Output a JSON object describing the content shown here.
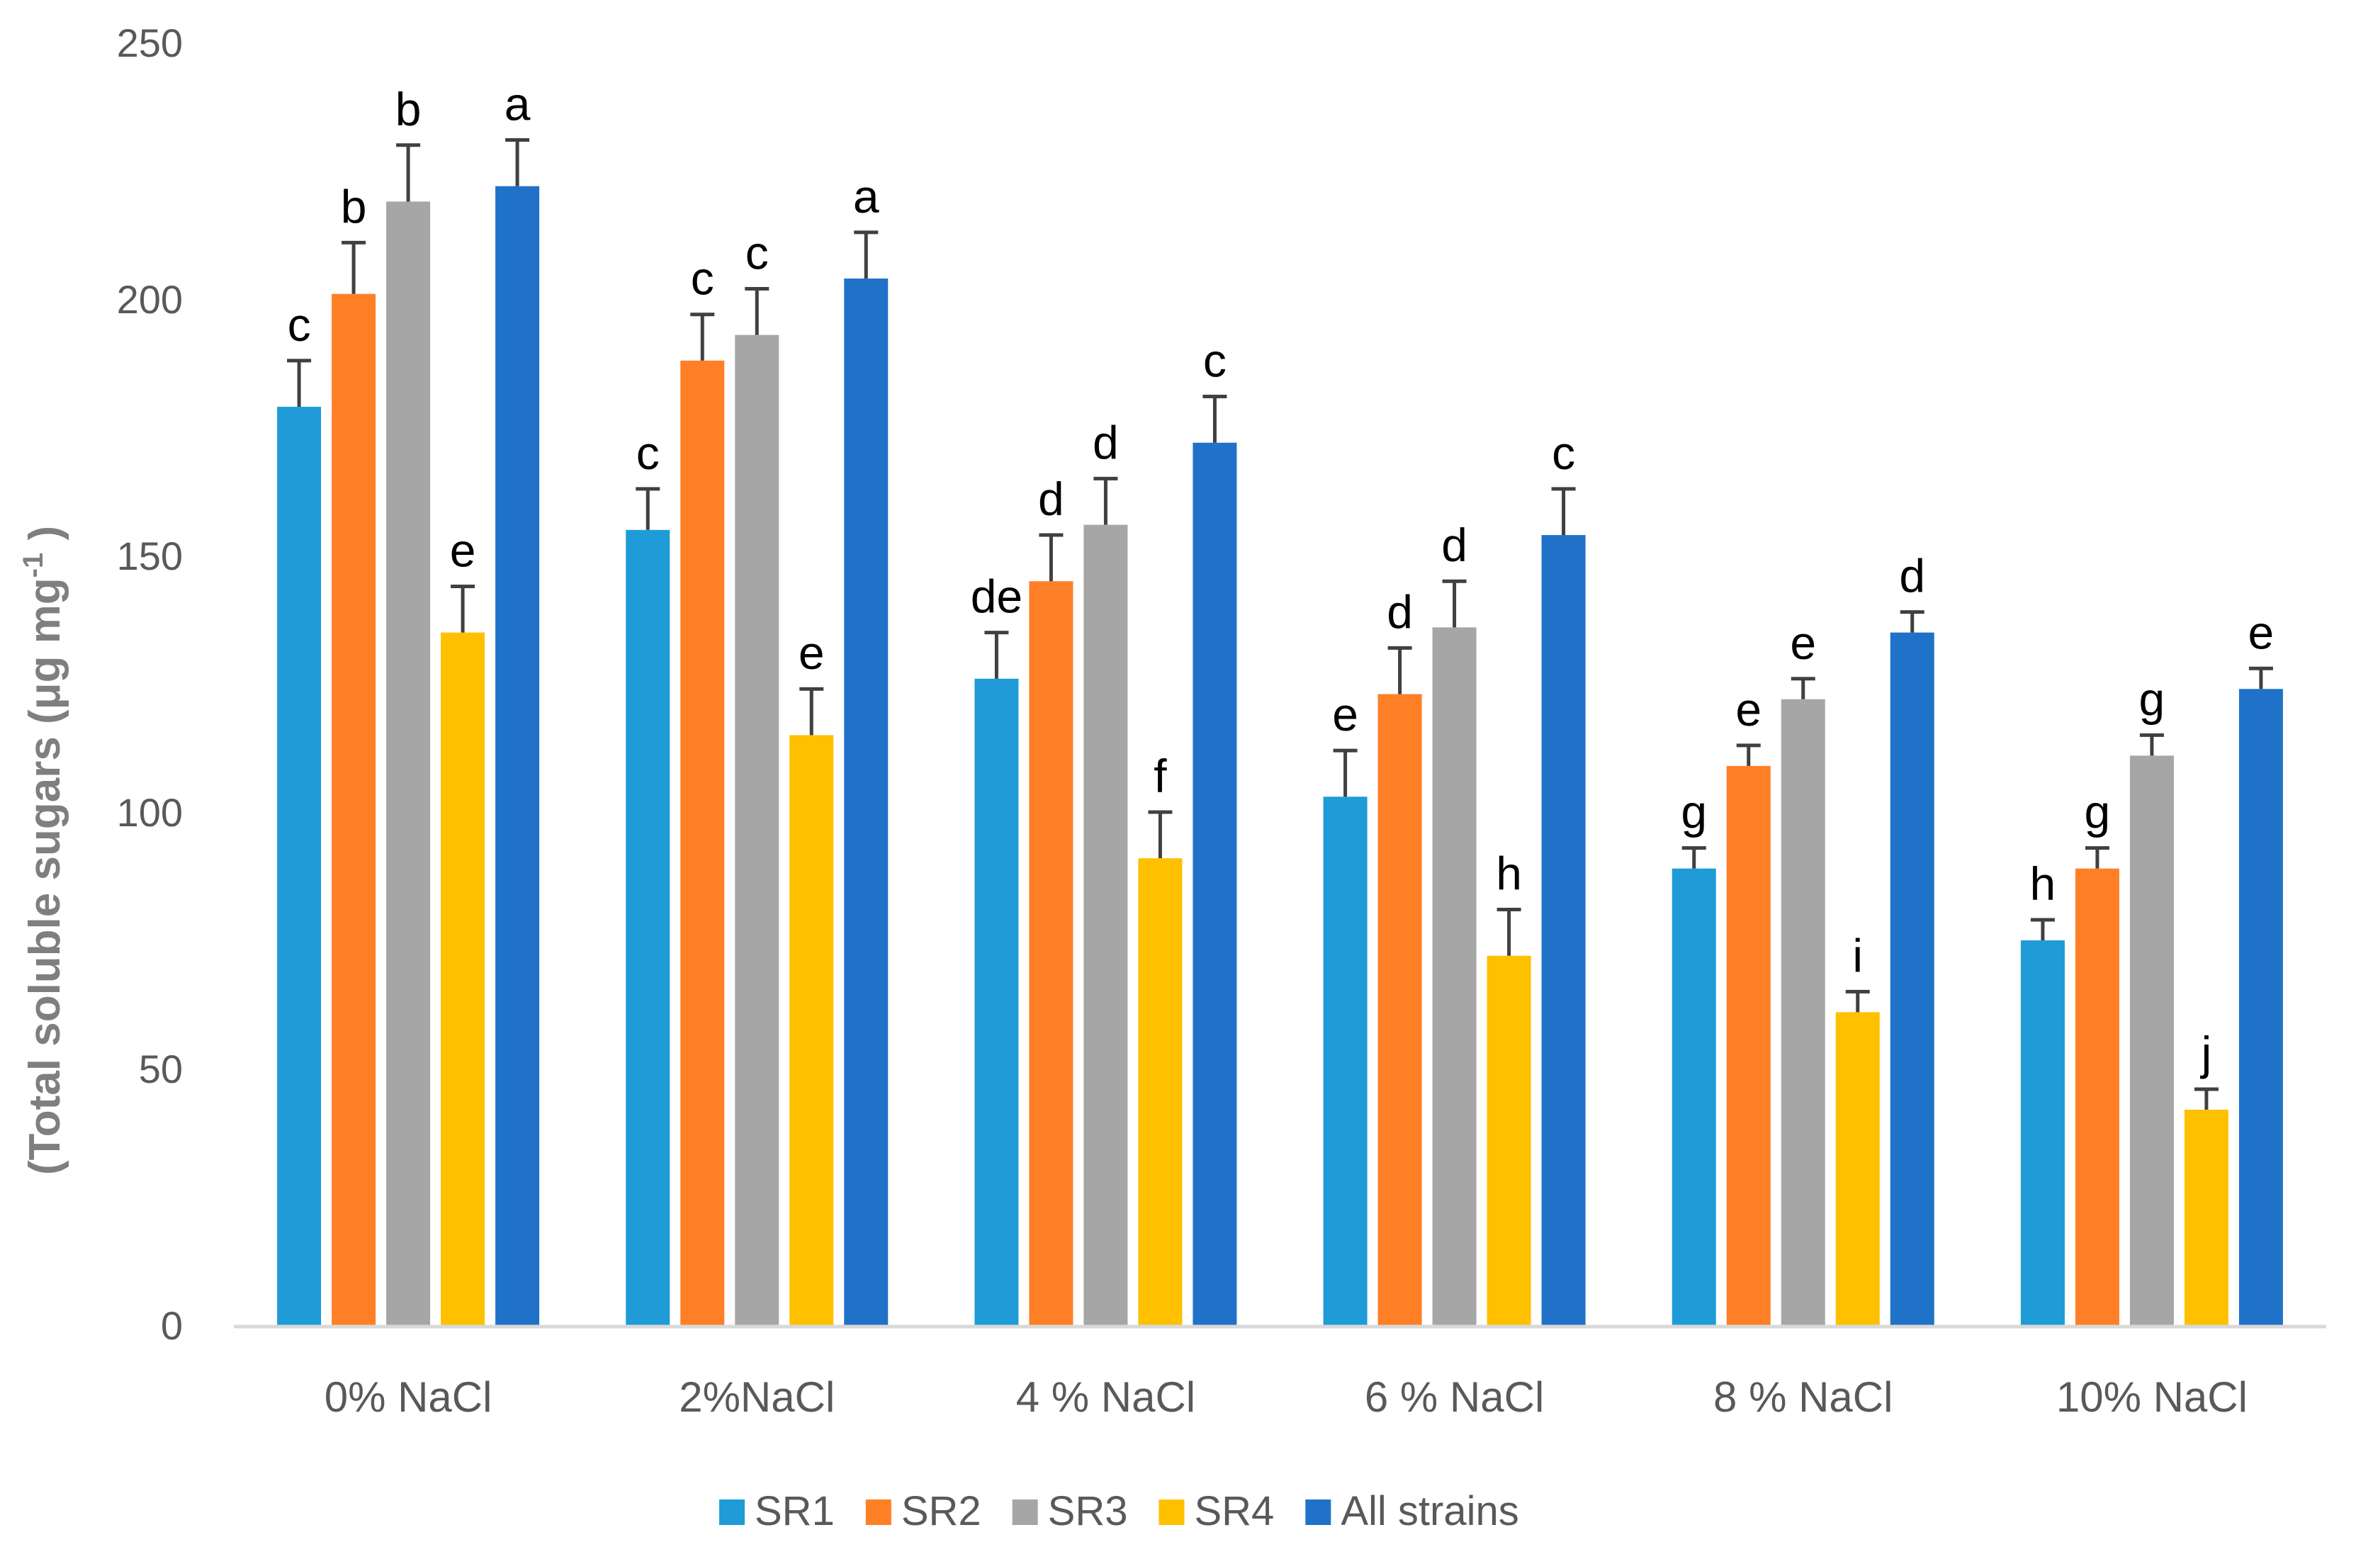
{
  "chart_data": {
    "type": "bar",
    "title": "",
    "xlabel": "",
    "ylabel_main": "(Total soluble sugars (μg mg",
    "ylabel_sup": "-1",
    "ylabel_end": " )",
    "ylim": [
      0,
      250
    ],
    "yticks": [
      0,
      50,
      100,
      150,
      200,
      250
    ],
    "grid": false,
    "legend_position": "bottom",
    "categories": [
      "0% NaCl",
      "2%NaCl",
      "4 % NaCl",
      "6 % NaCl",
      "8 % NaCl",
      "10% NaCl"
    ],
    "series": [
      {
        "name": "SR1",
        "color": "#1F9BD7",
        "values": [
          179,
          155,
          126,
          103,
          89,
          75
        ],
        "errors": [
          9,
          8,
          9,
          9,
          4,
          4
        ],
        "letters": [
          "c",
          "c",
          "de",
          "e",
          "g",
          "h"
        ]
      },
      {
        "name": "SR2",
        "color": "#FF7F27",
        "values": [
          201,
          188,
          145,
          123,
          109,
          89
        ],
        "errors": [
          10,
          9,
          9,
          9,
          4,
          4
        ],
        "letters": [
          "b",
          "c",
          "d",
          "d",
          "e",
          "g"
        ]
      },
      {
        "name": "SR3",
        "color": "#A6A6A6",
        "values": [
          219,
          193,
          156,
          136,
          122,
          111
        ],
        "errors": [
          11,
          9,
          9,
          9,
          4,
          4
        ],
        "letters": [
          "b",
          "c",
          "d",
          "d",
          "e",
          "g"
        ]
      },
      {
        "name": "SR4",
        "color": "#FFC000",
        "values": [
          135,
          115,
          91,
          72,
          61,
          42
        ],
        "errors": [
          9,
          9,
          9,
          9,
          4,
          4
        ],
        "letters": [
          "e",
          "e",
          "f",
          "h",
          "i",
          "j"
        ]
      },
      {
        "name": "All strains",
        "color": "#1F72C8",
        "values": [
          222,
          204,
          172,
          154,
          135,
          124
        ],
        "errors": [
          9,
          9,
          9,
          9,
          4,
          4
        ],
        "letters": [
          "a",
          "a",
          "c",
          "c",
          "d",
          "e"
        ]
      }
    ],
    "axis_color": "#D9D9D9",
    "text_color": "#595959",
    "error_bar_color": "#404040"
  }
}
